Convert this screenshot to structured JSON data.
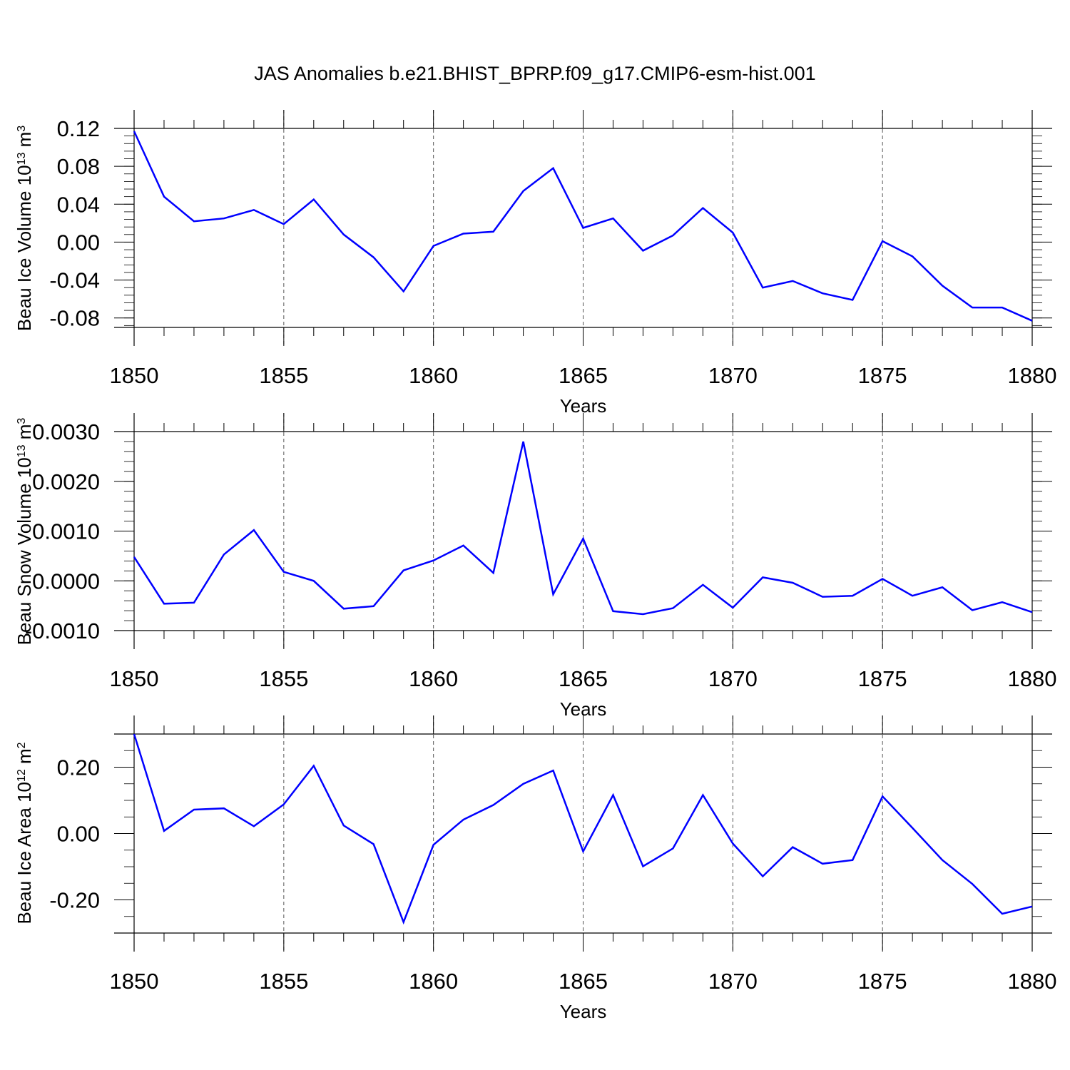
{
  "title": "JAS Anomalies b.e21.BHIST_BPRP.f09_g17.CMIP6-esm-hist.001",
  "line_color": "#0000ff",
  "chart_data": [
    {
      "type": "line",
      "name": "panel-ice-volume",
      "ylabel": "Beau Ice Volume 10",
      "ylabel_exp": "13",
      "ylabel_unit": " m",
      "ylabel_unit_exp": "3",
      "xlabel": "Years",
      "xlim": [
        1850,
        1880
      ],
      "ylim": [
        -0.09,
        0.12
      ],
      "x_ticks": [
        "1850",
        "1855",
        "1860",
        "1865",
        "1870",
        "1875",
        "1880"
      ],
      "x_tick_values": [
        1850,
        1855,
        1860,
        1865,
        1870,
        1875,
        1880
      ],
      "y_ticks": [
        "0.12",
        "0.08",
        "0.04",
        "0.00",
        "-0.04",
        "-0.08"
      ],
      "y_tick_values": [
        0.12,
        0.08,
        0.04,
        0.0,
        -0.04,
        -0.08
      ],
      "y_minor_step": 0.008,
      "grid": "dashed vertical at major x ticks",
      "x": [
        1850,
        1851,
        1852,
        1853,
        1854,
        1855,
        1856,
        1857,
        1858,
        1859,
        1860,
        1861,
        1862,
        1863,
        1864,
        1865,
        1866,
        1867,
        1868,
        1869,
        1870,
        1871,
        1872,
        1873,
        1874,
        1875,
        1876,
        1877,
        1878,
        1879,
        1880
      ],
      "values": [
        0.117,
        0.048,
        0.022,
        0.025,
        0.034,
        0.019,
        0.045,
        0.008,
        -0.016,
        -0.052,
        -0.004,
        0.009,
        0.011,
        0.054,
        0.078,
        0.015,
        0.025,
        -0.009,
        0.007,
        0.036,
        0.01,
        -0.048,
        -0.041,
        -0.054,
        -0.061,
        0.001,
        -0.015,
        -0.046,
        -0.069,
        -0.069,
        -0.083
      ]
    },
    {
      "type": "line",
      "name": "panel-snow-volume",
      "ylabel": "Beau Snow Volume 10",
      "ylabel_exp": "13",
      "ylabel_unit": " m",
      "ylabel_unit_exp": "3",
      "xlabel": "Years",
      "xlim": [
        1850,
        1880
      ],
      "ylim": [
        -0.001,
        0.003
      ],
      "x_ticks": [
        "1850",
        "1855",
        "1860",
        "1865",
        "1870",
        "1875",
        "1880"
      ],
      "x_tick_values": [
        1850,
        1855,
        1860,
        1865,
        1870,
        1875,
        1880
      ],
      "y_ticks": [
        "0.0030",
        "0.0020",
        "0.0010",
        "0.0000",
        "-0.0010"
      ],
      "y_tick_values": [
        0.003,
        0.002,
        0.001,
        0.0,
        -0.001
      ],
      "y_minor_step": 0.0002,
      "grid": "dashed vertical at major x ticks",
      "x": [
        1850,
        1851,
        1852,
        1853,
        1854,
        1855,
        1856,
        1857,
        1858,
        1859,
        1860,
        1861,
        1862,
        1863,
        1864,
        1865,
        1866,
        1867,
        1868,
        1869,
        1870,
        1871,
        1872,
        1873,
        1874,
        1875,
        1876,
        1877,
        1878,
        1879,
        1880
      ],
      "values": [
        0.00048,
        -0.00046,
        -0.00044,
        0.00053,
        0.00102,
        0.00018,
        0.0,
        -0.00056,
        -0.00051,
        0.00021,
        0.00041,
        0.00071,
        0.00016,
        0.0028,
        -0.00027,
        0.00085,
        -0.00061,
        -0.00067,
        -0.00055,
        -8e-05,
        -0.00054,
        7e-05,
        -4e-05,
        -0.00032,
        -0.0003,
        4e-05,
        -0.0003,
        -0.00013,
        -0.00059,
        -0.00043,
        -0.00063
      ]
    },
    {
      "type": "line",
      "name": "panel-ice-area",
      "ylabel": "Beau Ice Area 10",
      "ylabel_exp": "12",
      "ylabel_unit": " m",
      "ylabel_unit_exp": "2",
      "xlabel": "Years",
      "xlim": [
        1850,
        1880
      ],
      "ylim": [
        -0.3,
        0.3
      ],
      "x_ticks": [
        "1850",
        "1855",
        "1860",
        "1865",
        "1870",
        "1875",
        "1880"
      ],
      "x_tick_values": [
        1850,
        1855,
        1860,
        1865,
        1870,
        1875,
        1880
      ],
      "y_ticks": [
        "0.20",
        "0.00",
        "-0.20"
      ],
      "y_tick_values": [
        0.2,
        0.0,
        -0.2
      ],
      "y_minor_step": 0.05,
      "grid": "dashed vertical at major x ticks",
      "x": [
        1850,
        1851,
        1852,
        1853,
        1854,
        1855,
        1856,
        1857,
        1858,
        1859,
        1860,
        1861,
        1862,
        1863,
        1864,
        1865,
        1866,
        1867,
        1868,
        1869,
        1870,
        1871,
        1872,
        1873,
        1874,
        1875,
        1876,
        1877,
        1878,
        1879,
        1880
      ],
      "values": [
        0.3,
        0.008,
        0.072,
        0.076,
        0.022,
        0.088,
        0.204,
        0.024,
        -0.032,
        -0.267,
        -0.034,
        0.042,
        0.086,
        0.15,
        0.19,
        -0.054,
        0.116,
        -0.099,
        -0.045,
        0.116,
        -0.03,
        -0.129,
        -0.041,
        -0.091,
        -0.08,
        0.112,
        0.017,
        -0.08,
        -0.152,
        -0.242,
        -0.22
      ]
    }
  ]
}
